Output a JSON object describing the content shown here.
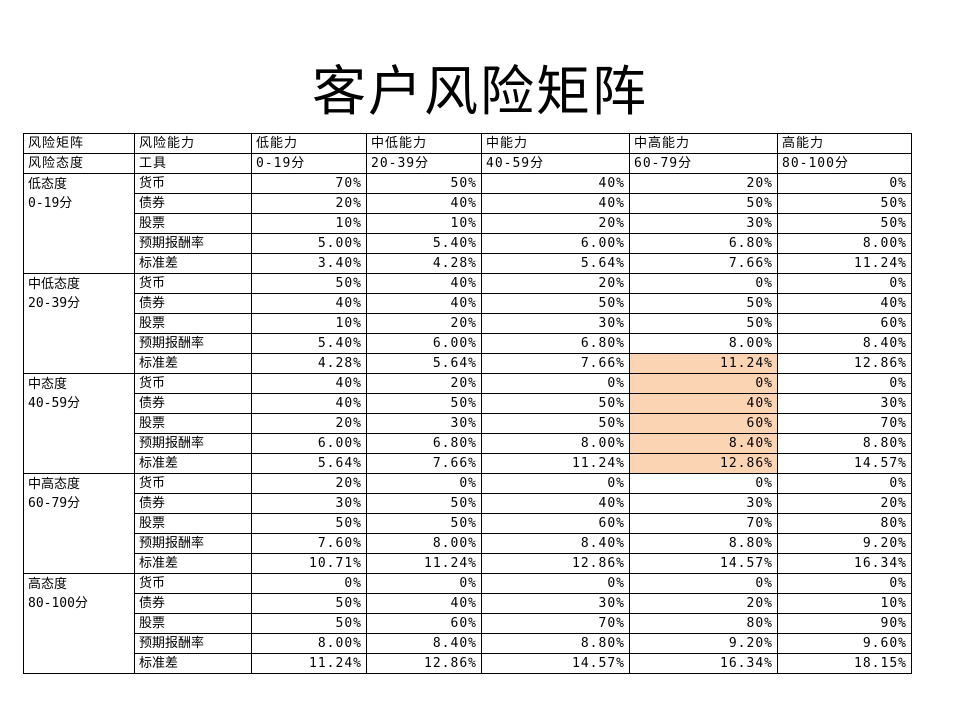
{
  "title": "客户风险矩阵",
  "header": {
    "row1": [
      "风险矩阵",
      "风险能力",
      "低能力",
      "中低能力",
      "中能力",
      "中高能力",
      "高能力"
    ],
    "row2": [
      "风险态度",
      "工具",
      "0-19分",
      "20-39分",
      "40-59分",
      "60-79分",
      "80-100分"
    ]
  },
  "highlight_color": "#fbd4b4",
  "groups": [
    {
      "name": "低态度",
      "range": "0-19分",
      "rows": [
        {
          "tool": "货币",
          "values": [
            "70%",
            "50%",
            "40%",
            "20%",
            "0%"
          ]
        },
        {
          "tool": "债券",
          "values": [
            "20%",
            "40%",
            "40%",
            "50%",
            "50%"
          ]
        },
        {
          "tool": "股票",
          "values": [
            "10%",
            "10%",
            "20%",
            "30%",
            "50%"
          ]
        },
        {
          "tool": "预期报酬率",
          "values": [
            "5.00%",
            "5.40%",
            "6.00%",
            "6.80%",
            "8.00%"
          ]
        },
        {
          "tool": "标准差",
          "values": [
            "3.40%",
            "4.28%",
            "5.64%",
            "7.66%",
            "11.24%"
          ]
        }
      ]
    },
    {
      "name": "中低态度",
      "range": "20-39分",
      "rows": [
        {
          "tool": "货币",
          "values": [
            "50%",
            "40%",
            "20%",
            "0%",
            "0%"
          ]
        },
        {
          "tool": "债券",
          "values": [
            "40%",
            "40%",
            "50%",
            "50%",
            "40%"
          ]
        },
        {
          "tool": "股票",
          "values": [
            "10%",
            "20%",
            "30%",
            "50%",
            "60%"
          ]
        },
        {
          "tool": "预期报酬率",
          "values": [
            "5.40%",
            "6.00%",
            "6.80%",
            "8.00%",
            "8.40%"
          ]
        },
        {
          "tool": "标准差",
          "values": [
            "4.28%",
            "5.64%",
            "7.66%",
            "11.24%",
            "12.86%"
          ],
          "highlight": [
            3
          ]
        }
      ]
    },
    {
      "name": "中态度",
      "range": "40-59分",
      "rows": [
        {
          "tool": "货币",
          "values": [
            "40%",
            "20%",
            "0%",
            "0%",
            "0%"
          ],
          "highlight": [
            3
          ]
        },
        {
          "tool": "债券",
          "values": [
            "40%",
            "50%",
            "50%",
            "40%",
            "30%"
          ],
          "highlight": [
            3
          ]
        },
        {
          "tool": "股票",
          "values": [
            "20%",
            "30%",
            "50%",
            "60%",
            "70%"
          ],
          "highlight": [
            3
          ]
        },
        {
          "tool": "预期报酬率",
          "values": [
            "6.00%",
            "6.80%",
            "8.00%",
            "8.40%",
            "8.80%"
          ],
          "highlight": [
            3
          ]
        },
        {
          "tool": "标准差",
          "values": [
            "5.64%",
            "7.66%",
            "11.24%",
            "12.86%",
            "14.57%"
          ],
          "highlight": [
            3
          ]
        }
      ]
    },
    {
      "name": "中高态度",
      "range": "60-79分",
      "rows": [
        {
          "tool": "货币",
          "values": [
            "20%",
            "0%",
            "0%",
            "0%",
            "0%"
          ]
        },
        {
          "tool": "债券",
          "values": [
            "30%",
            "50%",
            "40%",
            "30%",
            "20%"
          ]
        },
        {
          "tool": "股票",
          "values": [
            "50%",
            "50%",
            "60%",
            "70%",
            "80%"
          ]
        },
        {
          "tool": "预期报酬率",
          "values": [
            "7.60%",
            "8.00%",
            "8.40%",
            "8.80%",
            "9.20%"
          ]
        },
        {
          "tool": "标准差",
          "values": [
            "10.71%",
            "11.24%",
            "12.86%",
            "14.57%",
            "16.34%"
          ]
        }
      ]
    },
    {
      "name": "高态度",
      "range": "80-100分",
      "rows": [
        {
          "tool": "货币",
          "values": [
            "0%",
            "0%",
            "0%",
            "0%",
            "0%"
          ]
        },
        {
          "tool": "债券",
          "values": [
            "50%",
            "40%",
            "30%",
            "20%",
            "10%"
          ]
        },
        {
          "tool": "股票",
          "values": [
            "50%",
            "60%",
            "70%",
            "80%",
            "90%"
          ]
        },
        {
          "tool": "预期报酬率",
          "values": [
            "8.00%",
            "8.40%",
            "8.80%",
            "9.20%",
            "9.60%"
          ]
        },
        {
          "tool": "标准差",
          "values": [
            "11.24%",
            "12.86%",
            "14.57%",
            "16.34%",
            "18.15%"
          ]
        }
      ]
    }
  ]
}
